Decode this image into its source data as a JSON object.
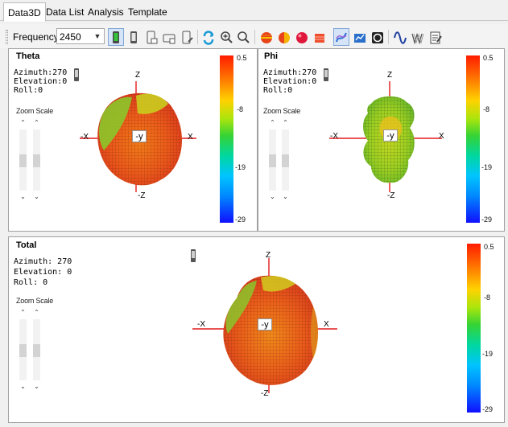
{
  "tabs": [
    {
      "label": "Data3D",
      "active": true
    },
    {
      "label": "Data List",
      "active": false
    },
    {
      "label": "Analysis",
      "active": false
    },
    {
      "label": "Template",
      "active": false
    }
  ],
  "toolbar": {
    "frequency_label": "Frequency:",
    "frequency_value": "2450",
    "icons": [
      "phone-front-icon",
      "phone-side-icon",
      "phone-left-icon",
      "phone-landscape-icon",
      "phone-right-icon",
      "rotate-icon",
      "zoom-in-icon",
      "zoom-out-icon",
      "sphere-slice-icon",
      "half-sphere-icon",
      "ball-icon",
      "box-icon",
      "surface-plot-icon",
      "chart-view-icon",
      "circle-target-icon",
      "wave-icon",
      "multi-wave-icon",
      "notes-icon"
    ]
  },
  "panels": {
    "theta": {
      "title": "Theta",
      "azimuth": "Azimuth:270",
      "elevation": "Elevation:0",
      "roll": "Roll:0",
      "zoom_label": "Zoom Scale",
      "axes": {
        "z": "Z",
        "neg_z": "-Z",
        "x": "X",
        "neg_x": "-X",
        "neg_y": "-y"
      },
      "scale": [
        "0.5",
        "-8",
        "-19",
        "-29"
      ]
    },
    "phi": {
      "title": "Phi",
      "azimuth": "Azimuth:270",
      "elevation": "Elevation:0",
      "roll": "Roll:0",
      "zoom_label": "Zoom Scale",
      "axes": {
        "z": "Z",
        "neg_z": "-Z",
        "x": "X",
        "neg_x": "-X",
        "neg_y": "-y"
      },
      "scale": [
        "0.5",
        "-8",
        "-19",
        "-29"
      ]
    },
    "total": {
      "title": "Total",
      "azimuth": "Azimuth: 270",
      "elevation": "Elevation: 0",
      "roll": "Roll: 0",
      "zoom_label": "Zoom Scale",
      "axes": {
        "z": "Z",
        "neg_z": "-Z",
        "x": "X",
        "neg_x": "-X",
        "neg_y": "-y"
      },
      "scale": [
        "0.5",
        "-8",
        "-19",
        "-29"
      ]
    }
  },
  "colors": {
    "pattern_red": "#e8441a",
    "pattern_orange": "#f07a16",
    "pattern_green": "#9bd31e",
    "axis_red": "#e31b1b",
    "toggle_blue": "#d5e4f6"
  }
}
